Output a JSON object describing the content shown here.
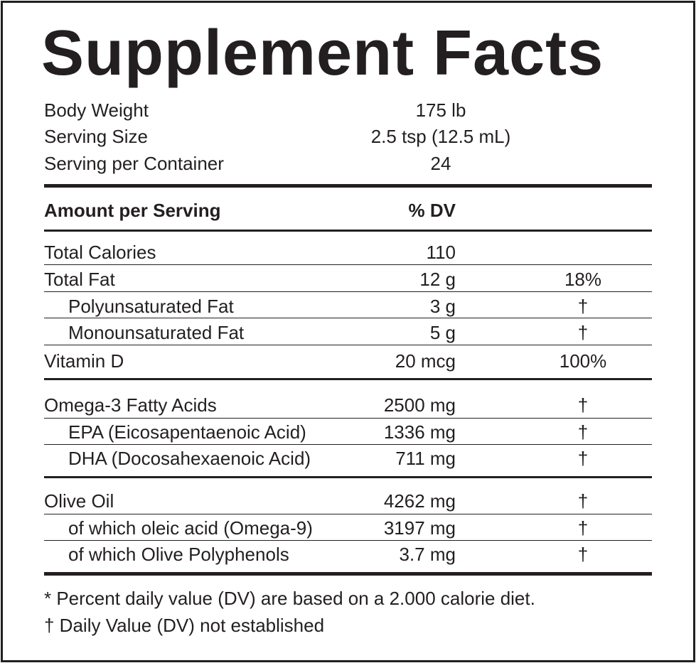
{
  "header": {
    "title": "Supplement Facts"
  },
  "info": [
    {
      "label": "Body Weight",
      "value": "175 lb"
    },
    {
      "label": "Serving Size",
      "value": "2.5 tsp (12.5 mL)"
    },
    {
      "label": "Serving per Container",
      "value": "24"
    }
  ],
  "table": {
    "columns": [
      "Amount per Serving",
      "% DV"
    ],
    "groups": [
      [
        {
          "label": "Total Calories",
          "amount": "110"
        },
        {
          "label": "Total Fat",
          "amount": "12 g",
          "dv": "18%"
        },
        {
          "label": "Polyunsaturated Fat",
          "amount": "3 g",
          "dv": "†"
        },
        {
          "label": "Monounsaturated Fat",
          "amount": "5 g",
          "dv": "†"
        },
        {
          "label": "Vitamin D",
          "amount": "20 mcg",
          "dv": "100%"
        }
      ],
      [
        {
          "label": "Omega-3 Fatty Acids",
          "amount": "2500 mg",
          "dv": "†"
        },
        {
          "label": "EPA (Eicosapentaenoic Acid)",
          "amount": "1336 mg",
          "dv": "†"
        },
        {
          "label": "DHA (Docosahexaenoic Acid)",
          "amount": "711 mg",
          "dv": "†"
        }
      ],
      [
        {
          "label": "Olive Oil",
          "amount": "4262 mg",
          "dv": "†"
        },
        {
          "label": "of which oleic acid (Omega-9)",
          "amount": "3197 mg",
          "dv": "†"
        },
        {
          "label": "of which Olive Polyphenols",
          "amount": "3.7 mg",
          "dv": "†"
        }
      ]
    ]
  },
  "footnotes": [
    "* Percent daily value (DV) are based on a 2.000 calorie diet.",
    "† Daily Value (DV) not established"
  ]
}
